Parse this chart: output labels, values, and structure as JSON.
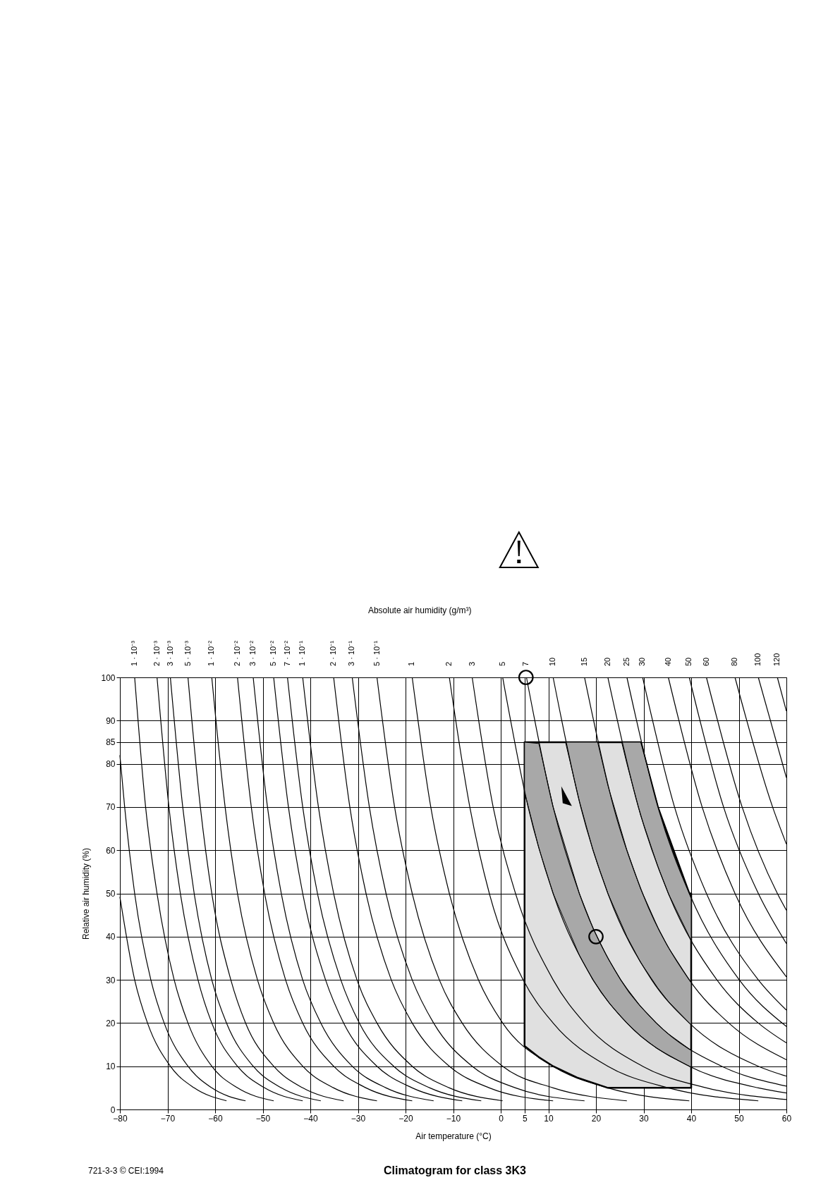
{
  "chart_data": {
    "type": "line",
    "title": "Climatogram for class 3K3",
    "xlabel": "Air temperature  (°C)",
    "ylabel": "Relative air humidity  (%)",
    "legend_title": "Absolute air humidity  (g/m³)",
    "annotations": [
      "721-3-3 © CEI:1994"
    ],
    "xlim": [
      -80,
      60
    ],
    "ylim": [
      0,
      100
    ],
    "xticks": [
      -80,
      -70,
      -60,
      -50,
      -40,
      -30,
      -20,
      -10,
      0,
      5,
      10,
      20,
      30,
      40,
      50,
      60
    ],
    "yticks": [
      0,
      10,
      20,
      30,
      40,
      50,
      60,
      70,
      80,
      85,
      90,
      100
    ],
    "grid": true,
    "series": [
      {
        "type": "area",
        "color": "#e0e0e0",
        "line_style": "solid",
        "x": [
          5,
          8,
          11,
          16,
          22.5,
          29.4,
          33.0,
          39.6,
          40
        ],
        "values": [
          null,
          null,
          null,
          null,
          null,
          null,
          null,
          null,
          null
        ],
        "upper": [
          85,
          85,
          85,
          85,
          85,
          85,
          70,
          50,
          50
        ],
        "lower": [
          14.7,
          12.1,
          10,
          7.4,
          5,
          5,
          5,
          5,
          5
        ]
      },
      {
        "type": "area",
        "color": "#a8a8a8",
        "x": [
          5,
          8,
          11,
          16.5,
          19.4,
          22.5,
          25.2,
          26.5,
          29.4,
          32.7,
          35.2,
          39.6,
          40
        ],
        "values": [
          null,
          null,
          null,
          null,
          null,
          null,
          null,
          null,
          null,
          null,
          null,
          null,
          null
        ],
        "upper": [
          85,
          84.7,
          70,
          50,
          41.9,
          35,
          30,
          28,
          23.8,
          19.9,
          17.5,
          14,
          13.7
        ],
        "lower": [
          73.4,
          60.5,
          50,
          35.7,
          29.9,
          25,
          21.5,
          20,
          17,
          14.2,
          12.5,
          10,
          9.8
        ]
      },
      {
        "type": "area",
        "color": "#a8a8a8",
        "x": [
          13.6,
          16.5,
          19.4,
          20.35,
          22.5,
          26.5,
          29.4,
          33.0,
          35.2,
          39.6,
          40
        ],
        "values": [
          null,
          null,
          null,
          null,
          null,
          null,
          null,
          null,
          null,
          null,
          null
        ],
        "upper": [
          85,
          85,
          85,
          85,
          75,
          60,
          51,
          42.1,
          37.5,
          30,
          29.4
        ],
        "lower": [
          85,
          71.4,
          59.9,
          56.7,
          50,
          40,
          34,
          28.1,
          25,
          20,
          19.6
        ]
      },
      {
        "type": "area",
        "color": "#a8a8a8",
        "x": [
          25.4,
          26.5,
          29.4,
          33.0,
          35.2,
          39.6,
          40
        ],
        "values": [
          null,
          null,
          null,
          null,
          null,
          null,
          null
        ],
        "upper": [
          85,
          85,
          85,
          70.2,
          62.5,
          50,
          48.9
        ],
        "lower": [
          85,
          80,
          68,
          56.2,
          50,
          40,
          39.1
        ]
      },
      {
        "color": "#000000",
        "x": [
          -80,
          -79.0,
          -76.9,
          -73.5,
          -70.7,
          -65.7,
          -60.7,
          -53.6
        ],
        "values": [
          82,
          70,
          50,
          30,
          20,
          10,
          5,
          2
        ]
      },
      {
        "color": "#000000",
        "x": [
          -80,
          -76.9,
          -74.2,
          -69.4,
          -64.4,
          -57.6
        ],
        "values": [
          49.2,
          30,
          20,
          10,
          5,
          2
        ]
      },
      {
        "name": "1 · 10⁻³",
        "color": "#000000",
        "x": [
          -76.9,
          -74.6,
          -72.2,
          -68.6,
          -65.7,
          -60.7,
          -55.3,
          -47.7
        ],
        "values": [
          100,
          70,
          50,
          30,
          20,
          10,
          5,
          2
        ]
      },
      {
        "name": "2 · 10⁻³",
        "color": "#000000",
        "x": [
          -72.2,
          -69.7,
          -67.3,
          -63.6,
          -60.7,
          -55.3,
          -49.6,
          -41.6
        ],
        "values": [
          100,
          70,
          50,
          30,
          20,
          10,
          5,
          2
        ]
      },
      {
        "name": "3 · 10⁻³",
        "color": "#000000",
        "x": [
          -69.4,
          -66.8,
          -64.4,
          -60.7,
          -57.6,
          -52.0,
          -46.1,
          -37.8
        ],
        "values": [
          100,
          70,
          50,
          30,
          20,
          10,
          5,
          2
        ]
      },
      {
        "name": "5 · 10⁻³",
        "color": "#000000",
        "x": [
          -65.7,
          -63.1,
          -60.7,
          -56.7,
          -53.6,
          -47.7,
          -41.6,
          -33.0
        ],
        "values": [
          100,
          70,
          50,
          30,
          20,
          10,
          5,
          2
        ]
      },
      {
        "name": "1 · 10⁻²",
        "color": "#000000",
        "x": [
          -60.7,
          -57.9,
          -55.3,
          -51.1,
          -47.7,
          -41.6,
          -35.1,
          -26.0
        ],
        "values": [
          100,
          70,
          50,
          30,
          20,
          10,
          5,
          2
        ]
      },
      {
        "name": "2 · 10⁻²",
        "color": "#000000",
        "x": [
          -55.3,
          -52.4,
          -49.6,
          -45.2,
          -41.6,
          -35.1,
          -28.3,
          -18.6
        ],
        "values": [
          100,
          70,
          50,
          30,
          20,
          10,
          5,
          2
        ]
      },
      {
        "name": "3 · 10⁻²",
        "color": "#000000",
        "x": [
          -52.0,
          -49.0,
          -46.1,
          -41.6,
          -37.8,
          -31.2,
          -24.1,
          -14.1
        ],
        "values": [
          100,
          70,
          50,
          30,
          20,
          10,
          5,
          2
        ]
      },
      {
        "name": "5 · 10⁻²",
        "color": "#000000",
        "x": [
          -47.7,
          -44.6,
          -41.6,
          -36.8,
          -33.0,
          -26.0,
          -18.6,
          -8.1
        ],
        "values": [
          100,
          70,
          50,
          30,
          20,
          10,
          5,
          2
        ]
      },
      {
        "name": "7 · 10⁻²",
        "color": "#000000",
        "x": [
          -44.8,
          -41.6,
          -38.5,
          -33.6,
          -29.7,
          -22.5,
          -14.9,
          -4.1
        ],
        "values": [
          100,
          70,
          50,
          30,
          20,
          10,
          5,
          2
        ]
      },
      {
        "name": "1 · 10⁻¹",
        "color": "#000000",
        "x": [
          -41.6,
          -38.3,
          -35.1,
          -30.2,
          -26.0,
          -18.6,
          -10.8,
          0.4
        ],
        "values": [
          100,
          70,
          50,
          30,
          20,
          10,
          5,
          2
        ]
      },
      {
        "name": "2 · 10⁻¹",
        "color": "#000000",
        "x": [
          -35.1,
          -31.7,
          -28.3,
          -23.0,
          -18.6,
          -10.8,
          -2.4,
          11.0
        ],
        "values": [
          100,
          70,
          50,
          30,
          20,
          10,
          5,
          2
        ]
      },
      {
        "name": "3 · 10⁻¹",
        "color": "#000000",
        "x": [
          -31.2,
          -27.6,
          -24.1,
          -18.6,
          -14.1,
          -6.0,
          3.1,
          17.6
        ],
        "values": [
          100,
          70,
          50,
          30,
          20,
          10,
          5,
          2
        ]
      },
      {
        "name": "5 · 10⁻¹",
        "color": "#000000",
        "x": [
          -26.0,
          -22.3,
          -18.6,
          -12.9,
          -8.1,
          0.4,
          11.0,
          26.5
        ],
        "values": [
          100,
          70,
          50,
          30,
          20,
          10,
          5,
          2
        ]
      },
      {
        "name": "1",
        "color": "#000000",
        "x": [
          -18.6,
          -14.7,
          -10.8,
          -4.7,
          0.4,
          11.0,
          22.5,
          39.6
        ],
        "values": [
          100,
          70,
          50,
          30,
          20,
          10,
          5,
          2
        ]
      },
      {
        "name": "2",
        "color": "#000000",
        "x": [
          -10.8,
          -6.5,
          -2.4,
          4.7,
          11.0,
          22.5,
          35.2,
          54.1
        ],
        "values": [
          100,
          70,
          50,
          30,
          20,
          10,
          5,
          2
        ]
      },
      {
        "name": "3",
        "color": "#000000",
        "x": [
          -6.0,
          -1.6,
          3.1,
          11.0,
          17.6,
          29.8,
          43.2,
          60
        ],
        "values": [
          100,
          70,
          50,
          30,
          20,
          10,
          5,
          2.3
        ]
      },
      {
        "name": "5",
        "color": "#000000",
        "x": [
          0.4,
          5.75,
          11.0,
          19.4,
          26.5,
          39.6,
          54.1,
          60
        ],
        "values": [
          100,
          70,
          50,
          30,
          20,
          10,
          5,
          3.8
        ]
      },
      {
        "name": "7",
        "color": "#000000",
        "x": [
          5.4,
          11.0,
          16.5,
          25.2,
          32.7,
          46.4,
          60
        ],
        "values": [
          100,
          70,
          50,
          30,
          20,
          10,
          5.4
        ]
      },
      {
        "name": "10",
        "color": "#000000",
        "x": [
          11.0,
          16.8,
          22.5,
          31.7,
          39.6,
          54.1,
          60
        ],
        "values": [
          100,
          70,
          50,
          30,
          20,
          10,
          7.7
        ]
      },
      {
        "name": "15",
        "color": "#000000",
        "x": [
          17.6,
          23.7,
          29.8,
          39.6,
          47.9,
          60
        ],
        "values": [
          100,
          70,
          50,
          30,
          20,
          11.5
        ]
      },
      {
        "name": "20",
        "color": "#000000",
        "x": [
          22.5,
          28.9,
          35.2,
          45.4,
          54.1,
          60
        ],
        "values": [
          100,
          70,
          50,
          30,
          20,
          15.4
        ]
      },
      {
        "name": "25",
        "color": "#000000",
        "x": [
          26.5,
          33.0,
          39.6,
          50.1,
          60
        ],
        "values": [
          100,
          70,
          50,
          30,
          19.2
        ]
      },
      {
        "name": "30",
        "color": "#000000",
        "x": [
          29.8,
          36.5,
          43.2,
          54.1,
          60
        ],
        "values": [
          100,
          70,
          50,
          30,
          23
        ]
      },
      {
        "name": "40",
        "color": "#000000",
        "x": [
          35.2,
          42.3,
          49.2,
          60
        ],
        "values": [
          100,
          70,
          50,
          30.7
        ]
      },
      {
        "name": "50",
        "color": "#000000",
        "x": [
          39.6,
          46.8,
          54.1,
          60
        ],
        "values": [
          100,
          70,
          50,
          38.4
        ]
      },
      {
        "name": "60",
        "color": "#000000",
        "x": [
          43.2,
          50.7,
          58.1,
          60
        ],
        "values": [
          100,
          70,
          50,
          46.1
        ]
      },
      {
        "name": "80",
        "color": "#000000",
        "x": [
          49.2,
          57.1,
          60
        ],
        "values": [
          100,
          70,
          61.4
        ]
      },
      {
        "name": "100",
        "color": "#000000",
        "x": [
          54.1,
          60
        ],
        "values": [
          100,
          76.8
        ]
      },
      {
        "name": "120",
        "color": "#000000",
        "x": [
          58.1,
          60
        ],
        "values": [
          100,
          92.2
        ]
      },
      {
        "type": "scatter",
        "marker": "circle",
        "color": "#000000",
        "x": [
          5.3,
          20
        ],
        "values": [
          100,
          40
        ]
      }
    ]
  }
}
